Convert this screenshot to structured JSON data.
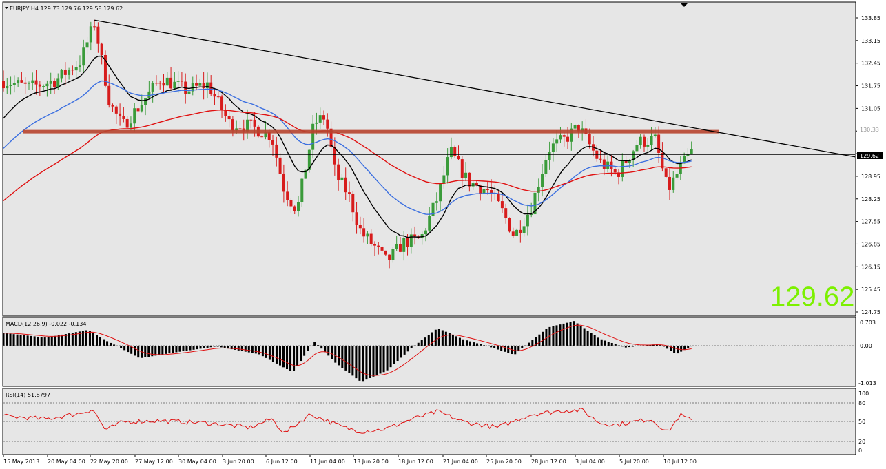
{
  "main": {
    "header": "EURJPY,H4  129.73 129.76 129.58 129.62",
    "price_labels": [
      "133.85",
      "133.15",
      "132.45",
      "131.75",
      "131.05",
      "130.35",
      "129.65",
      "128.95",
      "128.25",
      "127.55",
      "126.85",
      "126.15",
      "125.45",
      "124.75"
    ],
    "current_price": "129.62",
    "level_tag": "130.33",
    "big_price": "129.62"
  },
  "macd": {
    "header": "MACD(12,26,9) -0.022 -0.134",
    "labels": [
      "0.703",
      "0.00",
      "-1.013"
    ]
  },
  "rsi": {
    "header": "RSI(14) 51.8797",
    "labels": [
      "100",
      "80",
      "50",
      "20",
      "0"
    ]
  },
  "time_labels": [
    "15 May 2013",
    "20 May 04:00",
    "22 May 20:00",
    "27 May 12:00",
    "30 May 04:00",
    "3 Jun 20:00",
    "6 Jun 12:00",
    "11 Jun 04:00",
    "13 Jun 20:00",
    "18 Jun 12:00",
    "21 Jun 04:00",
    "25 Jun 20:00",
    "28 Jun 12:00",
    "3 Jul 04:00",
    "5 Jul 20:00",
    "10 Jul 12:00"
  ],
  "colors": {
    "bull": "#3a9b3a",
    "bear": "#d71c1c",
    "ma_black": "#000000",
    "ma_blue": "#3b6fe0",
    "ma_red": "#e01010",
    "resistance": "#b8452f",
    "trendline": "#000000",
    "big_price": "#7cf000",
    "panel_bg": "#e6e6e6"
  },
  "chart_data": {
    "type": "candlestick",
    "symbol": "EURJPY",
    "timeframe": "H4",
    "ylim": [
      124.75,
      133.85
    ],
    "trendline": [
      {
        "t": 0.0,
        "price": 133.8
      },
      {
        "t": 1.0,
        "price": 129.55
      }
    ],
    "resistance_level": 130.33,
    "anchors": [
      {
        "t": 0.0,
        "p": 131.9
      },
      {
        "t": 0.03,
        "p": 131.7
      },
      {
        "t": 0.06,
        "p": 131.9
      },
      {
        "t": 0.09,
        "p": 132.5
      },
      {
        "t": 0.107,
        "p": 133.7
      },
      {
        "t": 0.125,
        "p": 131.2
      },
      {
        "t": 0.14,
        "p": 130.5
      },
      {
        "t": 0.165,
        "p": 131.3
      },
      {
        "t": 0.185,
        "p": 132.0
      },
      {
        "t": 0.215,
        "p": 131.6
      },
      {
        "t": 0.24,
        "p": 131.8
      },
      {
        "t": 0.265,
        "p": 130.6
      },
      {
        "t": 0.29,
        "p": 130.5
      },
      {
        "t": 0.315,
        "p": 130.2
      },
      {
        "t": 0.33,
        "p": 128.5
      },
      {
        "t": 0.345,
        "p": 127.9
      },
      {
        "t": 0.365,
        "p": 130.6
      },
      {
        "t": 0.378,
        "p": 130.8
      },
      {
        "t": 0.39,
        "p": 129.0
      },
      {
        "t": 0.405,
        "p": 128.4
      },
      {
        "t": 0.42,
        "p": 127.2
      },
      {
        "t": 0.435,
        "p": 126.8
      },
      {
        "t": 0.45,
        "p": 126.3
      },
      {
        "t": 0.47,
        "p": 126.9
      },
      {
        "t": 0.49,
        "p": 127.0
      },
      {
        "t": 0.51,
        "p": 128.3
      },
      {
        "t": 0.525,
        "p": 129.7
      },
      {
        "t": 0.545,
        "p": 128.8
      },
      {
        "t": 0.57,
        "p": 128.5
      },
      {
        "t": 0.585,
        "p": 127.9
      },
      {
        "t": 0.6,
        "p": 127.1
      },
      {
        "t": 0.62,
        "p": 128.0
      },
      {
        "t": 0.64,
        "p": 129.8
      },
      {
        "t": 0.66,
        "p": 130.1
      },
      {
        "t": 0.675,
        "p": 130.5
      },
      {
        "t": 0.7,
        "p": 129.4
      },
      {
        "t": 0.72,
        "p": 129.0
      },
      {
        "t": 0.745,
        "p": 130.0
      },
      {
        "t": 0.765,
        "p": 130.1
      },
      {
        "t": 0.78,
        "p": 128.5
      },
      {
        "t": 0.795,
        "p": 129.2
      },
      {
        "t": 0.808,
        "p": 129.7
      }
    ],
    "macd_anchors": [
      {
        "t": 0.0,
        "v": 0.36
      },
      {
        "t": 0.05,
        "v": 0.23
      },
      {
        "t": 0.1,
        "v": 0.45
      },
      {
        "t": 0.12,
        "v": 0.15
      },
      {
        "t": 0.16,
        "v": -0.33
      },
      {
        "t": 0.2,
        "v": -0.18
      },
      {
        "t": 0.25,
        "v": -0.02
      },
      {
        "t": 0.3,
        "v": -0.22
      },
      {
        "t": 0.34,
        "v": -0.7
      },
      {
        "t": 0.365,
        "v": 0.12
      },
      {
        "t": 0.39,
        "v": -0.45
      },
      {
        "t": 0.42,
        "v": -0.95
      },
      {
        "t": 0.45,
        "v": -0.66
      },
      {
        "t": 0.48,
        "v": -0.05
      },
      {
        "t": 0.51,
        "v": 0.5
      },
      {
        "t": 0.54,
        "v": 0.18
      },
      {
        "t": 0.575,
        "v": -0.06
      },
      {
        "t": 0.6,
        "v": -0.24
      },
      {
        "t": 0.64,
        "v": 0.52
      },
      {
        "t": 0.67,
        "v": 0.7
      },
      {
        "t": 0.7,
        "v": 0.2
      },
      {
        "t": 0.73,
        "v": -0.05
      },
      {
        "t": 0.77,
        "v": 0.05
      },
      {
        "t": 0.79,
        "v": -0.22
      },
      {
        "t": 0.808,
        "v": -0.02
      }
    ],
    "rsi_anchors": [
      {
        "t": 0.0,
        "v": 60
      },
      {
        "t": 0.05,
        "v": 55
      },
      {
        "t": 0.09,
        "v": 65
      },
      {
        "t": 0.105,
        "v": 72
      },
      {
        "t": 0.12,
        "v": 35
      },
      {
        "t": 0.14,
        "v": 50
      },
      {
        "t": 0.18,
        "v": 52
      },
      {
        "t": 0.24,
        "v": 48
      },
      {
        "t": 0.29,
        "v": 40
      },
      {
        "t": 0.315,
        "v": 55
      },
      {
        "t": 0.33,
        "v": 30
      },
      {
        "t": 0.36,
        "v": 63
      },
      {
        "t": 0.375,
        "v": 55
      },
      {
        "t": 0.4,
        "v": 40
      },
      {
        "t": 0.42,
        "v": 33
      },
      {
        "t": 0.45,
        "v": 38
      },
      {
        "t": 0.48,
        "v": 55
      },
      {
        "t": 0.51,
        "v": 68
      },
      {
        "t": 0.54,
        "v": 50
      },
      {
        "t": 0.58,
        "v": 40
      },
      {
        "t": 0.62,
        "v": 63
      },
      {
        "t": 0.66,
        "v": 70
      },
      {
        "t": 0.68,
        "v": 70
      },
      {
        "t": 0.7,
        "v": 48
      },
      {
        "t": 0.72,
        "v": 45
      },
      {
        "t": 0.76,
        "v": 55
      },
      {
        "t": 0.78,
        "v": 32
      },
      {
        "t": 0.795,
        "v": 62
      },
      {
        "t": 0.808,
        "v": 52
      }
    ],
    "rsi_levels": [
      80,
      50,
      20
    ]
  }
}
